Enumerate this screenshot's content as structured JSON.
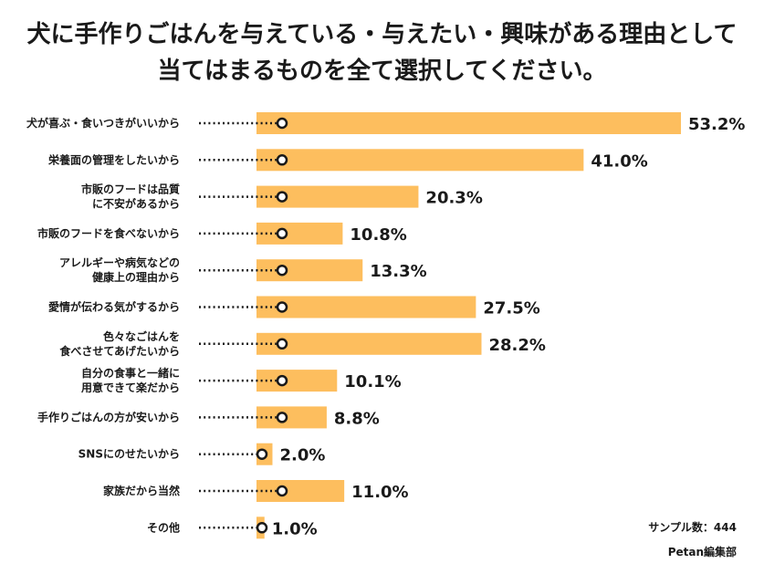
{
  "chart_data": {
    "type": "bar",
    "orientation": "horizontal",
    "title_lines": [
      "犬に手作りごはんを与えている・与えたい・興味がある理由として",
      "当てはまるものを全て選択してください。"
    ],
    "categories": [
      [
        "犬が喜ぶ・食いつきがいいから"
      ],
      [
        "栄養面の管理をしたいから"
      ],
      [
        "市販のフードは品質",
        "に不安があるから"
      ],
      [
        "市販のフードを食べないから"
      ],
      [
        "アレルギーや病気などの",
        "健康上の理由から"
      ],
      [
        "愛情が伝わる気がするから"
      ],
      [
        "色々なごはんを",
        "食べさせてあげたいから"
      ],
      [
        "自分の食事と一緒に",
        "用意できて楽だから"
      ],
      [
        "手作りごはんの方が安いから"
      ],
      [
        "SNSにのせたいから"
      ],
      [
        "家族だから当然"
      ],
      [
        "その他"
      ]
    ],
    "values": [
      53.2,
      41.0,
      20.3,
      10.8,
      13.3,
      27.5,
      28.2,
      10.1,
      8.8,
      2.0,
      11.0,
      1.0
    ],
    "value_labels": [
      "53.2%",
      "41.0%",
      "20.3%",
      "10.8%",
      "13.3%",
      "27.5%",
      "28.2%",
      "10.1%",
      "8.8%",
      "2.0%",
      "11.0%",
      "1.0%"
    ],
    "unit": "%",
    "bar_color": "#FDBE5E",
    "marker_color": "#1a1a1a"
  },
  "footer": {
    "sample": "サンプル数：444",
    "source": "Petan編集部"
  }
}
